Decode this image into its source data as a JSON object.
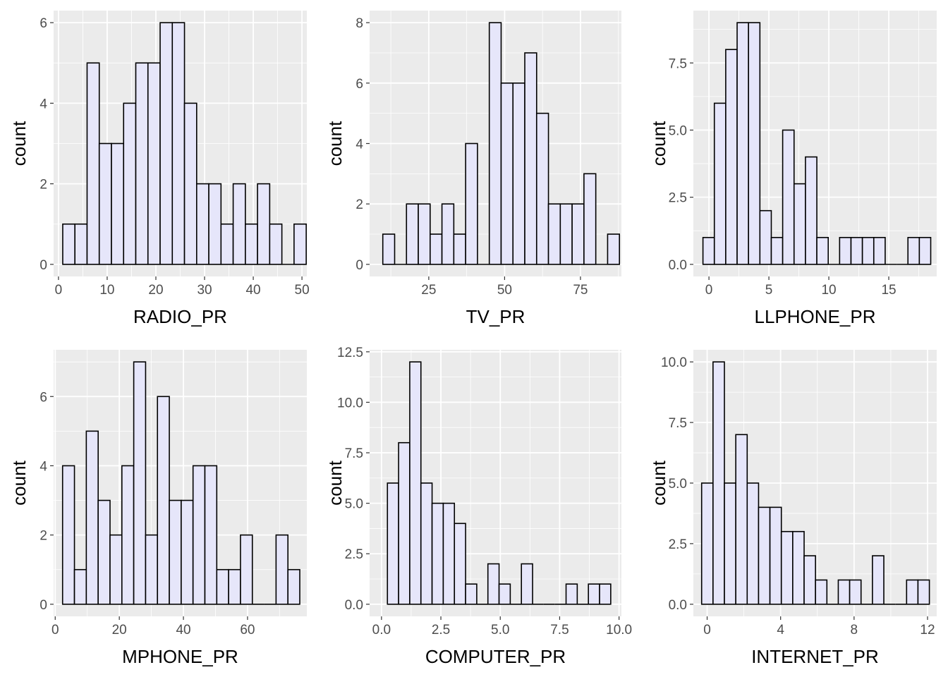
{
  "chart_data": [
    {
      "type": "bar",
      "subtype": "histogram",
      "xlabel": "RADIO_PR",
      "ylabel": "count",
      "x_ticks": [
        0,
        10,
        20,
        30,
        40,
        50
      ],
      "y_ticks": [
        0,
        2,
        4,
        6
      ],
      "xlim": [
        -1,
        51
      ],
      "ylim": [
        -0.3,
        6.3
      ],
      "bin_start": 0.875,
      "bin_width": 2.5,
      "counts": [
        1,
        1,
        5,
        3,
        3,
        4,
        5,
        5,
        6,
        6,
        4,
        2,
        2,
        1,
        2,
        1,
        2,
        1,
        0,
        1
      ],
      "bar_fill": "#e6e6fa",
      "bar_stroke": "#000000",
      "panel_background": "#ebebeb",
      "grid": true
    },
    {
      "type": "bar",
      "subtype": "histogram",
      "xlabel": "TV_PR",
      "ylabel": "count",
      "x_ticks": [
        25,
        50,
        75
      ],
      "y_ticks": [
        0,
        2,
        4,
        6,
        8
      ],
      "xlim": [
        5.5,
        88.5
      ],
      "ylim": [
        -0.4,
        8.4
      ],
      "bin_start": 9.85,
      "bin_width": 3.9,
      "counts": [
        1,
        0,
        2,
        2,
        1,
        2,
        1,
        4,
        0,
        8,
        6,
        6,
        7,
        5,
        2,
        2,
        2,
        3,
        0,
        1
      ],
      "bar_fill": "#e6e6fa",
      "bar_stroke": "#000000",
      "panel_background": "#ebebeb",
      "grid": true
    },
    {
      "type": "bar",
      "subtype": "histogram",
      "xlabel": "LLPHONE_PR",
      "ylabel": "count",
      "x_ticks": [
        0,
        5,
        10,
        15
      ],
      "x_tick_labels": [
        "0",
        "5",
        "10",
        "15"
      ],
      "y_ticks": [
        0,
        2.5,
        5,
        7.5
      ],
      "y_tick_labels": [
        "0.0",
        "2.5",
        "5.0",
        "7.5"
      ],
      "xlim": [
        -1.3,
        19
      ],
      "ylim": [
        -0.45,
        9.45
      ],
      "bin_start": -0.5,
      "bin_width": 0.95,
      "counts": [
        1,
        6,
        8,
        9,
        9,
        2,
        1,
        5,
        3,
        4,
        1,
        0,
        1,
        1,
        1,
        1,
        0,
        0,
        1,
        1
      ],
      "bar_fill": "#e6e6fa",
      "bar_stroke": "#000000",
      "panel_background": "#ebebeb",
      "grid": true
    },
    {
      "type": "bar",
      "subtype": "histogram",
      "xlabel": "MPHONE_PR",
      "ylabel": "count",
      "x_ticks": [
        0,
        20,
        40,
        60
      ],
      "y_ticks": [
        0,
        2,
        4,
        6
      ],
      "xlim": [
        -0.5,
        78.5
      ],
      "ylim": [
        -0.35,
        7.35
      ],
      "bin_start": 2.3,
      "bin_width": 3.7,
      "counts": [
        4,
        1,
        5,
        3,
        2,
        4,
        7,
        2,
        6,
        3,
        3,
        4,
        4,
        1,
        1,
        2,
        0,
        0,
        2,
        1
      ],
      "bar_fill": "#e6e6fa",
      "bar_stroke": "#000000",
      "panel_background": "#ebebeb",
      "grid": true
    },
    {
      "type": "bar",
      "subtype": "histogram",
      "xlabel": "COMPUTER_PR",
      "ylabel": "count",
      "x_ticks": [
        0,
        2.5,
        5,
        7.5,
        10
      ],
      "x_tick_labels": [
        "0.0",
        "2.5",
        "5.0",
        "7.5",
        "10.0"
      ],
      "y_ticks": [
        0,
        2.5,
        5,
        7.5,
        10,
        12.5
      ],
      "y_tick_labels": [
        "0.0",
        "2.5",
        "5.0",
        "7.5",
        "10.0",
        "12.5"
      ],
      "xlim": [
        -0.5,
        10.1
      ],
      "ylim": [
        -0.6,
        12.6
      ],
      "bin_start": 0.25,
      "bin_width": 0.47,
      "counts": [
        6,
        8,
        12,
        6,
        5,
        5,
        4,
        1,
        0,
        2,
        1,
        0,
        2,
        0,
        0,
        0,
        1,
        0,
        1,
        1
      ],
      "bar_fill": "#e6e6fa",
      "bar_stroke": "#000000",
      "panel_background": "#ebebeb",
      "grid": true
    },
    {
      "type": "bar",
      "subtype": "histogram",
      "xlabel": "INTERNET_PR",
      "ylabel": "count",
      "x_ticks": [
        0,
        4,
        8,
        12
      ],
      "y_ticks": [
        0,
        2.5,
        5,
        7.5,
        10
      ],
      "y_tick_labels": [
        "0.0",
        "2.5",
        "5.0",
        "7.5",
        "10.0"
      ],
      "xlim": [
        -0.75,
        12.5
      ],
      "ylim": [
        -0.5,
        10.5
      ],
      "bin_start": -0.3,
      "bin_width": 0.62,
      "counts": [
        5,
        10,
        5,
        7,
        5,
        4,
        4,
        3,
        3,
        2,
        1,
        0,
        1,
        1,
        0,
        2,
        0,
        0,
        1,
        1
      ],
      "bar_fill": "#e6e6fa",
      "bar_stroke": "#000000",
      "panel_background": "#ebebeb",
      "grid": true
    }
  ]
}
